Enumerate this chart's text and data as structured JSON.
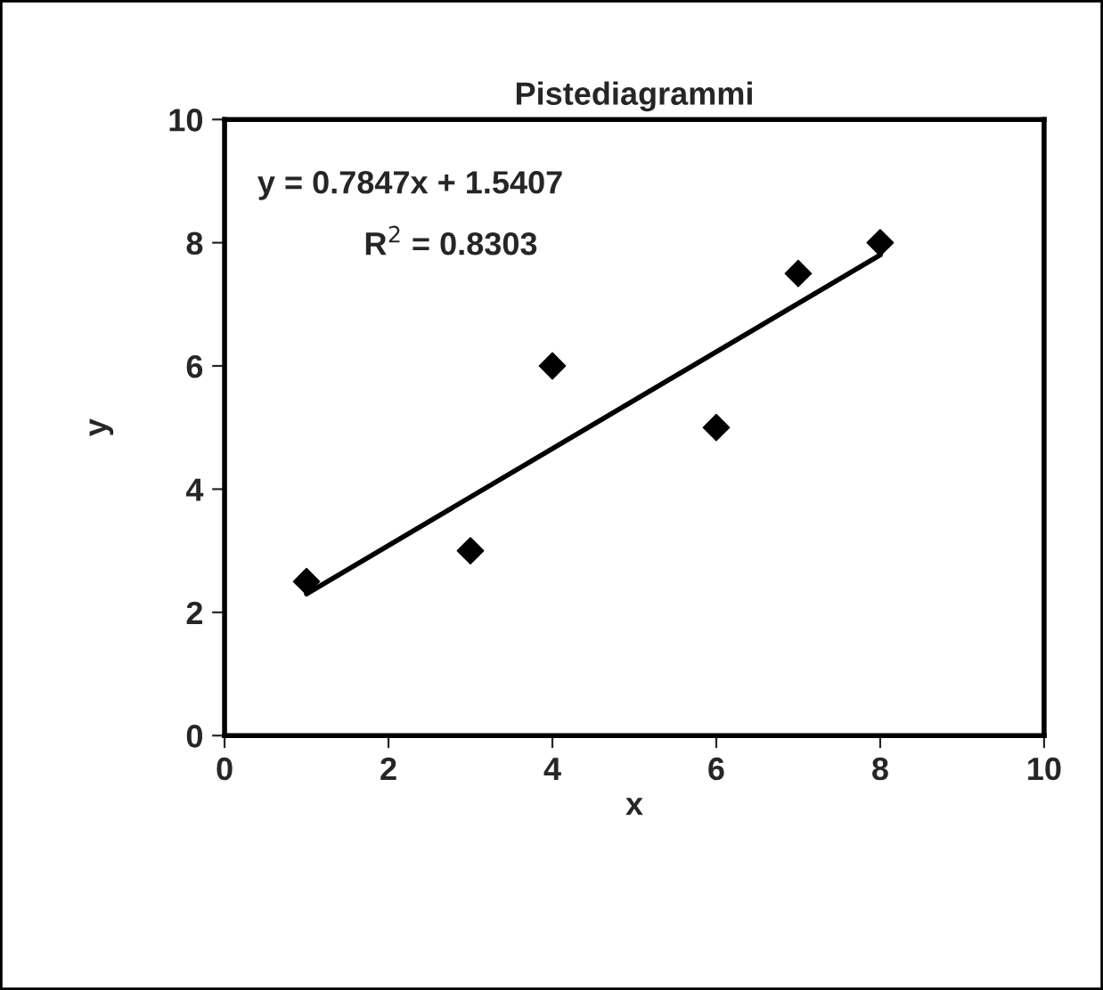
{
  "chart_data": {
    "type": "scatter",
    "title": "Pistediagrammi",
    "xlabel": "x",
    "ylabel": "y",
    "xlim": [
      0,
      10
    ],
    "ylim": [
      0,
      10
    ],
    "xticks": [
      0,
      2,
      4,
      6,
      8,
      10
    ],
    "yticks": [
      0,
      2,
      4,
      6,
      8,
      10
    ],
    "grid": false,
    "legend": false,
    "series": [
      {
        "color": "#000000",
        "marker": "diamond",
        "x": [
          1,
          3,
          4,
          6,
          7,
          8
        ],
        "values": [
          2.5,
          3,
          6,
          5,
          7.5,
          8
        ]
      },
      {
        "type": "line",
        "color": "#000000",
        "marker": "none",
        "line_style": "solid",
        "x": [
          1,
          8
        ],
        "values": [
          2.3,
          7.8
        ]
      }
    ],
    "annotations": [
      "y = 0.7847x + 1.5407",
      "R$^{2}$ = 0.8303"
    ]
  }
}
